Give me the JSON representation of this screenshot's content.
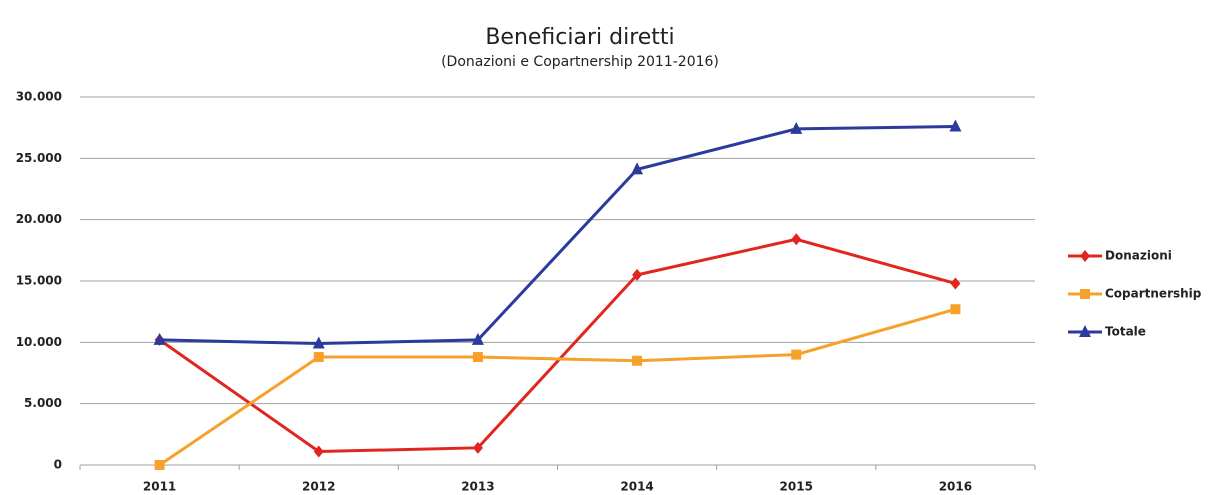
{
  "chart_data": {
    "type": "line",
    "title": "Beneficiari diretti",
    "subtitle": "(Donazioni e Copartnership 2011-2016)",
    "categories": [
      "2011",
      "2012",
      "2013",
      "2014",
      "2015",
      "2016"
    ],
    "series": [
      {
        "name": "Donazioni",
        "color": "#e0261f",
        "marker": "diamond",
        "values": [
          10200,
          1100,
          1400,
          15500,
          18400,
          14800
        ]
      },
      {
        "name": "Copartnership",
        "color": "#f7a12b",
        "marker": "square",
        "values": [
          0,
          8800,
          8800,
          8500,
          9000,
          12700
        ]
      },
      {
        "name": "Totale",
        "color": "#2b3a9c",
        "marker": "triangle",
        "values": [
          10200,
          9900,
          10200,
          24100,
          27400,
          27600
        ]
      }
    ],
    "ylim": [
      0,
      30000
    ],
    "yticks": [
      0,
      {
        "value": 5000,
        "label": "5.000"
      },
      {
        "value": 10000,
        "label": "10.000"
      },
      {
        "value": 15000,
        "label": "15.000"
      },
      {
        "value": 20000,
        "label": "20.000"
      },
      {
        "value": 25000,
        "label": "25.000"
      },
      {
        "value": 30000,
        "label": "30.000"
      }
    ],
    "grid": true,
    "legend": "right"
  }
}
